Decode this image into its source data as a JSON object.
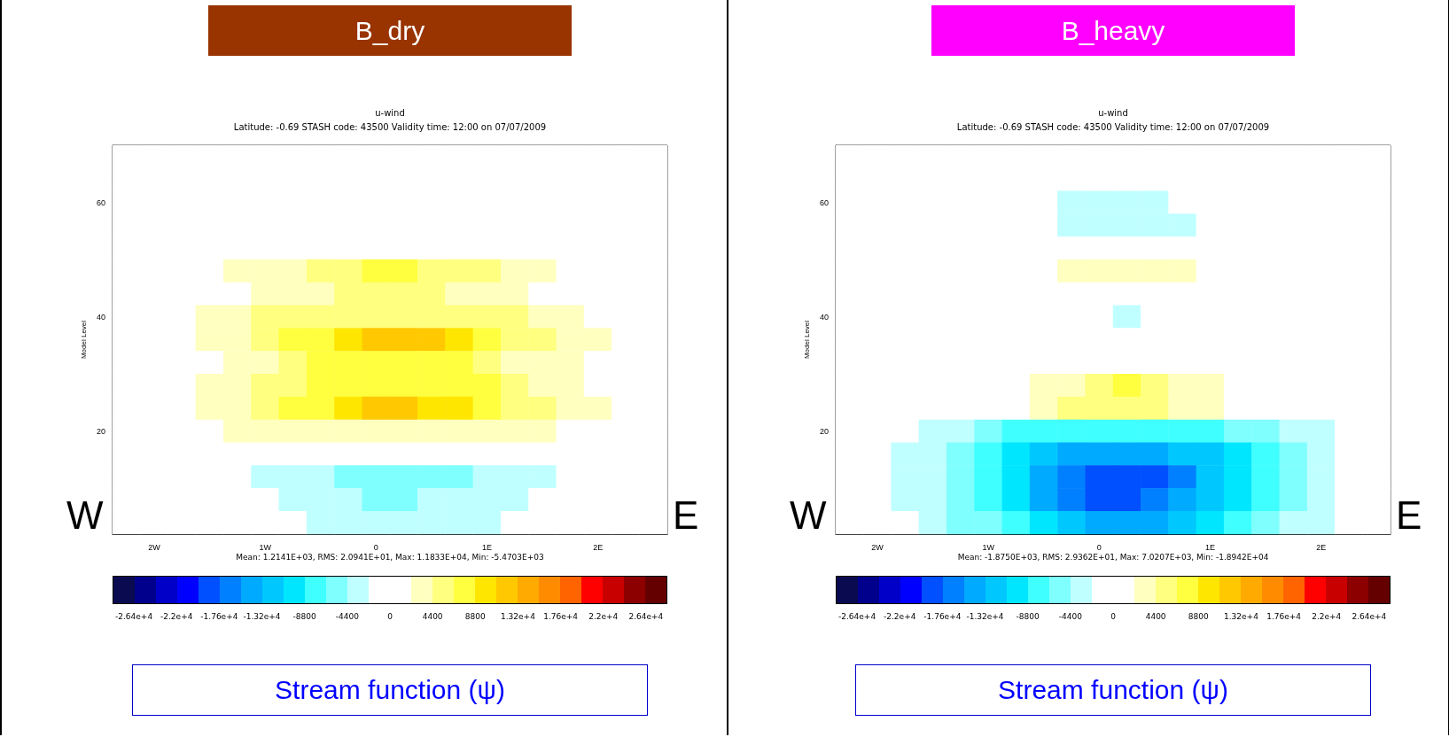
{
  "chart_data": [
    {
      "type": "heatmap",
      "title": "B_dry",
      "subtitle": "u-wind",
      "ylabel": "Model Level",
      "clabel": "Stream function (ψ)",
      "annotations": [
        "Latitude:  -0.69  STASH code:  43500  Validity time: 12:00 on 07/07/2009",
        "Mean:  1.2141E+03,  RMS:  2.0941E+01,  Max:  1.1833E+04,  Min: -5.4703E+03",
        "W",
        "E"
      ],
      "categories": [
        null,
        "2W",
        null,
        null,
        null,
        "1W",
        null,
        null,
        null,
        "0",
        null,
        null,
        null,
        "1E",
        null,
        null,
        null,
        "2E",
        null,
        null
      ],
      "y_categories": [
        null,
        null,
        "60",
        null,
        null,
        null,
        null,
        "40",
        null,
        null,
        null,
        null,
        "20",
        null,
        null,
        null,
        null
      ],
      "clim": [
        -28600,
        28600
      ],
      "cticks": [
        {
          "value": -26400,
          "label": "-2.64e+4"
        },
        {
          "value": -22000,
          "label": "-2.2e+4"
        },
        {
          "value": -17600,
          "label": "-1.76e+4"
        },
        {
          "value": -13200,
          "label": "-1.32e+4"
        },
        -8800,
        -4400,
        0,
        4400,
        8800,
        {
          "value": 13200,
          "label": "1.32e+4"
        },
        {
          "value": 17600,
          "label": "1.76e+4"
        },
        {
          "value": 22000,
          "label": "2.2e+4"
        },
        {
          "value": 26400,
          "label": "2.64e+4"
        }
      ],
      "colors": [
        "#0a0a50",
        "#00008c",
        "#0000c8",
        "#0000ff",
        "#0050ff",
        "#0080ff",
        "#00aaff",
        "#00c8ff",
        "#00e6ff",
        "#40ffff",
        "#80ffff",
        "#c0ffff",
        "#ffffff",
        "#ffffff",
        "#ffffc0",
        "#ffff80",
        "#ffff40",
        "#ffe600",
        "#ffc800",
        "#ffaa00",
        "#ff8c00",
        "#ff6400",
        "#ff0000",
        "#c80000",
        "#8c0000",
        "#640000"
      ],
      "cells": [
        [
          0,
          0,
          0,
          0,
          0,
          0,
          0,
          0,
          0,
          0,
          0,
          0,
          0,
          0,
          0,
          0,
          0,
          0,
          0,
          0
        ],
        [
          0,
          0,
          0,
          0,
          0,
          0,
          0,
          0,
          0,
          0,
          0,
          0,
          0,
          0,
          0,
          0,
          0,
          0,
          0,
          0
        ],
        [
          0,
          0,
          0,
          0,
          0,
          0,
          0,
          0,
          0,
          0,
          0,
          0,
          0,
          0,
          0,
          0,
          0,
          0,
          0,
          0
        ],
        [
          0,
          0,
          0,
          0,
          0,
          0,
          0,
          0,
          0,
          0,
          0,
          0,
          0,
          0,
          0,
          0,
          0,
          0,
          0,
          0
        ],
        [
          0,
          0,
          0,
          0,
          0,
          0,
          0,
          0,
          0,
          0,
          0,
          0,
          0,
          0,
          0,
          0,
          0,
          0,
          0,
          0
        ],
        [
          0,
          0,
          0,
          0,
          3300,
          3300,
          3300,
          5500,
          5500,
          7700,
          7700,
          5500,
          5500,
          5500,
          3300,
          3300,
          0,
          0,
          0,
          0
        ],
        [
          0,
          0,
          0,
          0,
          0,
          3300,
          3300,
          3300,
          5500,
          5500,
          5500,
          5500,
          3300,
          3300,
          3300,
          0,
          0,
          0,
          0,
          0
        ],
        [
          0,
          0,
          0,
          3300,
          3300,
          5500,
          5500,
          5500,
          5500,
          5500,
          5500,
          5500,
          5500,
          5500,
          5500,
          3300,
          3300,
          0,
          0,
          0
        ],
        [
          0,
          0,
          0,
          3300,
          3300,
          5500,
          7700,
          7700,
          9900,
          12100,
          12100,
          12100,
          9900,
          7700,
          5500,
          5500,
          3300,
          3300,
          0,
          0
        ],
        [
          0,
          0,
          0,
          0,
          3300,
          3300,
          5500,
          7700,
          7700,
          7700,
          7700,
          7700,
          7700,
          5500,
          3300,
          3300,
          3300,
          0,
          0,
          0
        ],
        [
          0,
          0,
          0,
          3300,
          3300,
          5500,
          5500,
          7700,
          7700,
          7700,
          7700,
          7700,
          7700,
          7700,
          5500,
          3300,
          3300,
          0,
          0,
          0
        ],
        [
          0,
          0,
          0,
          3300,
          3300,
          5500,
          7700,
          7700,
          9900,
          12100,
          12100,
          9900,
          9900,
          7700,
          5500,
          5500,
          3300,
          3300,
          0,
          0
        ],
        [
          0,
          0,
          0,
          0,
          3300,
          3300,
          3300,
          3300,
          3300,
          3300,
          3300,
          3300,
          3300,
          3300,
          3300,
          3300,
          0,
          0,
          0,
          0
        ],
        [
          0,
          0,
          0,
          0,
          0,
          0,
          0,
          0,
          0,
          0,
          0,
          0,
          0,
          0,
          0,
          0,
          0,
          0,
          0,
          0
        ],
        [
          0,
          0,
          0,
          0,
          0,
          -3300,
          -3300,
          -3300,
          -5500,
          -5500,
          -5500,
          -5500,
          -5500,
          -3300,
          -3300,
          -3300,
          0,
          0,
          0,
          0
        ],
        [
          0,
          0,
          0,
          0,
          0,
          0,
          -3300,
          -3300,
          -3300,
          -5500,
          -5500,
          -3300,
          -3300,
          -3300,
          -3300,
          0,
          0,
          0,
          0,
          0
        ],
        [
          0,
          0,
          0,
          0,
          0,
          0,
          0,
          -3300,
          -3300,
          -3300,
          -3300,
          -3300,
          -3300,
          -3300,
          0,
          0,
          0,
          0,
          0,
          0
        ]
      ]
    },
    {
      "type": "heatmap",
      "title": "B_heavy",
      "subtitle": "u-wind",
      "ylabel": "Model Level",
      "clabel": "Stream function (ψ)",
      "annotations": [
        "Latitude:  -0.69  STASH code:  43500  Validity time: 12:00 on 07/07/2009",
        "Mean: -1.8750E+03,  RMS:  2.9362E+01,  Max:  7.0207E+03,  Min: -1.8942E+04",
        "W",
        "E"
      ],
      "categories": [
        null,
        "2W",
        null,
        null,
        null,
        "1W",
        null,
        null,
        null,
        "0",
        null,
        null,
        null,
        "1E",
        null,
        null,
        null,
        "2E",
        null,
        null
      ],
      "y_categories": [
        null,
        null,
        "60",
        null,
        null,
        null,
        null,
        "40",
        null,
        null,
        null,
        null,
        "20",
        null,
        null,
        null,
        null
      ],
      "clim": [
        -28600,
        28600
      ],
      "cticks": [
        {
          "value": -26400,
          "label": "-2.64e+4"
        },
        {
          "value": -22000,
          "label": "-2.2e+4"
        },
        {
          "value": -17600,
          "label": "-1.76e+4"
        },
        {
          "value": -13200,
          "label": "-1.32e+4"
        },
        -8800,
        -4400,
        0,
        4400,
        8800,
        {
          "value": 13200,
          "label": "1.32e+4"
        },
        {
          "value": 17600,
          "label": "1.76e+4"
        },
        {
          "value": 22000,
          "label": "2.2e+4"
        },
        {
          "value": 26400,
          "label": "2.64e+4"
        }
      ],
      "colors": [
        "#0a0a50",
        "#00008c",
        "#0000c8",
        "#0000ff",
        "#0050ff",
        "#0080ff",
        "#00aaff",
        "#00c8ff",
        "#00e6ff",
        "#40ffff",
        "#80ffff",
        "#c0ffff",
        "#ffffff",
        "#ffffff",
        "#ffffc0",
        "#ffff80",
        "#ffff40",
        "#ffe600",
        "#ffc800",
        "#ffaa00",
        "#ff8c00",
        "#ff6400",
        "#ff0000",
        "#c80000",
        "#8c0000",
        "#640000"
      ],
      "cells": [
        [
          0,
          0,
          0,
          0,
          0,
          0,
          0,
          0,
          0,
          0,
          0,
          0,
          0,
          0,
          0,
          0,
          0,
          0,
          0,
          0
        ],
        [
          0,
          0,
          0,
          0,
          0,
          0,
          0,
          0,
          0,
          0,
          0,
          0,
          0,
          0,
          0,
          0,
          0,
          0,
          0,
          0
        ],
        [
          0,
          0,
          0,
          0,
          0,
          0,
          0,
          0,
          -3300,
          -3300,
          -3300,
          -3300,
          0,
          0,
          0,
          0,
          0,
          0,
          0,
          0
        ],
        [
          0,
          0,
          0,
          0,
          0,
          0,
          0,
          0,
          -3300,
          -3300,
          -3300,
          -3300,
          -3300,
          0,
          0,
          0,
          0,
          0,
          0,
          0
        ],
        [
          0,
          0,
          0,
          0,
          0,
          0,
          0,
          0,
          0,
          0,
          0,
          0,
          0,
          0,
          0,
          0,
          0,
          0,
          0,
          0
        ],
        [
          0,
          0,
          0,
          0,
          0,
          0,
          0,
          0,
          3300,
          3300,
          3300,
          3300,
          3300,
          0,
          0,
          0,
          0,
          0,
          0,
          0
        ],
        [
          0,
          0,
          0,
          0,
          0,
          0,
          0,
          0,
          0,
          0,
          0,
          0,
          0,
          0,
          0,
          0,
          0,
          0,
          0,
          0
        ],
        [
          0,
          0,
          0,
          0,
          0,
          0,
          0,
          0,
          0,
          0,
          -3300,
          0,
          0,
          0,
          0,
          0,
          0,
          0,
          0,
          0
        ],
        [
          0,
          0,
          0,
          0,
          0,
          0,
          0,
          0,
          0,
          0,
          0,
          0,
          0,
          0,
          0,
          0,
          0,
          0,
          0,
          0
        ],
        [
          0,
          0,
          0,
          0,
          0,
          0,
          0,
          0,
          0,
          0,
          0,
          0,
          0,
          0,
          0,
          0,
          0,
          0,
          0,
          0
        ],
        [
          0,
          0,
          0,
          0,
          0,
          0,
          0,
          3300,
          3300,
          5500,
          7700,
          5500,
          3300,
          3300,
          0,
          0,
          0,
          0,
          0,
          0
        ],
        [
          0,
          0,
          0,
          0,
          0,
          0,
          0,
          3300,
          5500,
          5500,
          5500,
          5500,
          3300,
          3300,
          0,
          0,
          0,
          0,
          0,
          0
        ],
        [
          0,
          0,
          0,
          -3300,
          -3300,
          -5500,
          -7700,
          -7700,
          -7700,
          -7700,
          -7700,
          -7700,
          -7700,
          -7700,
          -5500,
          -5500,
          -3300,
          -3300,
          0,
          0
        ],
        [
          0,
          0,
          -3300,
          -3300,
          -5500,
          -7700,
          -9900,
          -12100,
          -14300,
          -14300,
          -14300,
          -14300,
          -12100,
          -12100,
          -9900,
          -7700,
          -5500,
          -3300,
          0,
          0
        ],
        [
          0,
          0,
          -3300,
          -3300,
          -5500,
          -7700,
          -9900,
          -14300,
          -16500,
          -18700,
          -18700,
          -18700,
          -16500,
          -12100,
          -9900,
          -7700,
          -5500,
          -3300,
          0,
          0
        ],
        [
          0,
          0,
          -3300,
          -3300,
          -5500,
          -7700,
          -9900,
          -14300,
          -16500,
          -18700,
          -18700,
          -16500,
          -14300,
          -12100,
          -9900,
          -7700,
          -5500,
          -3300,
          0,
          0
        ],
        [
          0,
          0,
          0,
          -3300,
          -5500,
          -5500,
          -7700,
          -9900,
          -12100,
          -14300,
          -14300,
          -14300,
          -12100,
          -9900,
          -7700,
          -5500,
          -3300,
          -3300,
          0,
          0
        ]
      ]
    }
  ]
}
